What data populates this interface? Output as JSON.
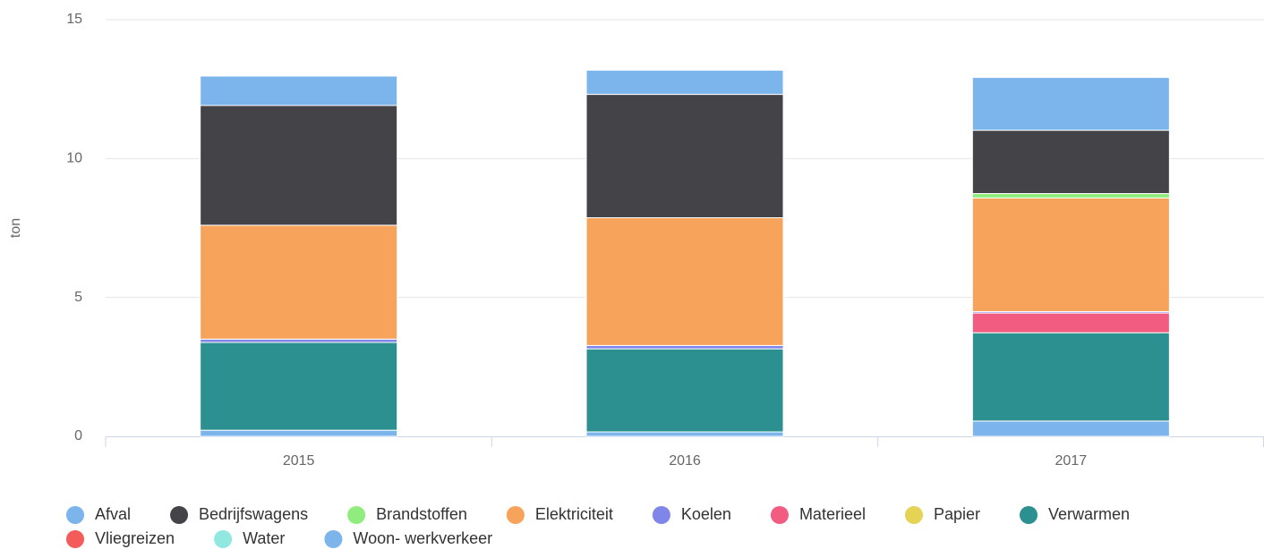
{
  "chart_data": {
    "type": "stacked-bar",
    "y_label": "ton",
    "categories": [
      "2015",
      "2016",
      "2017"
    ],
    "ylim": [
      0,
      15
    ],
    "yticks": [
      0,
      5,
      10,
      15
    ],
    "grid": true,
    "series": [
      {
        "name": "Afval",
        "color": "#7cb5ec",
        "values": [
          1.06,
          0.87,
          1.9
        ]
      },
      {
        "name": "Bedrijfswagens",
        "color": "#434348",
        "values": [
          4.31,
          4.44,
          2.28
        ]
      },
      {
        "name": "Brandstoffen",
        "color": "#90ed7d",
        "values": [
          0,
          0,
          0.16
        ]
      },
      {
        "name": "Elektriciteit",
        "color": "#f7a35c",
        "values": [
          4.1,
          4.6,
          4.09
        ]
      },
      {
        "name": "Koelen",
        "color": "#8085e9",
        "values": [
          0.12,
          0.12,
          0.05
        ]
      },
      {
        "name": "Materieel",
        "color": "#f15c80",
        "values": [
          0,
          0,
          0.71
        ]
      },
      {
        "name": "Papier",
        "color": "#e4d354",
        "values": [
          0,
          0,
          0
        ]
      },
      {
        "name": "Verwarmen",
        "color": "#2b908f",
        "values": [
          3.16,
          2.99,
          3.18
        ]
      },
      {
        "name": "Vliegreizen",
        "color": "#f45b5b",
        "values": [
          0,
          0,
          0
        ]
      },
      {
        "name": "Water",
        "color": "#91e8e1",
        "values": [
          0,
          0,
          0
        ]
      },
      {
        "name": "Woon- werkverkeer",
        "color": "#7cb5ec",
        "values": [
          0.22,
          0.16,
          0.55
        ]
      }
    ]
  }
}
